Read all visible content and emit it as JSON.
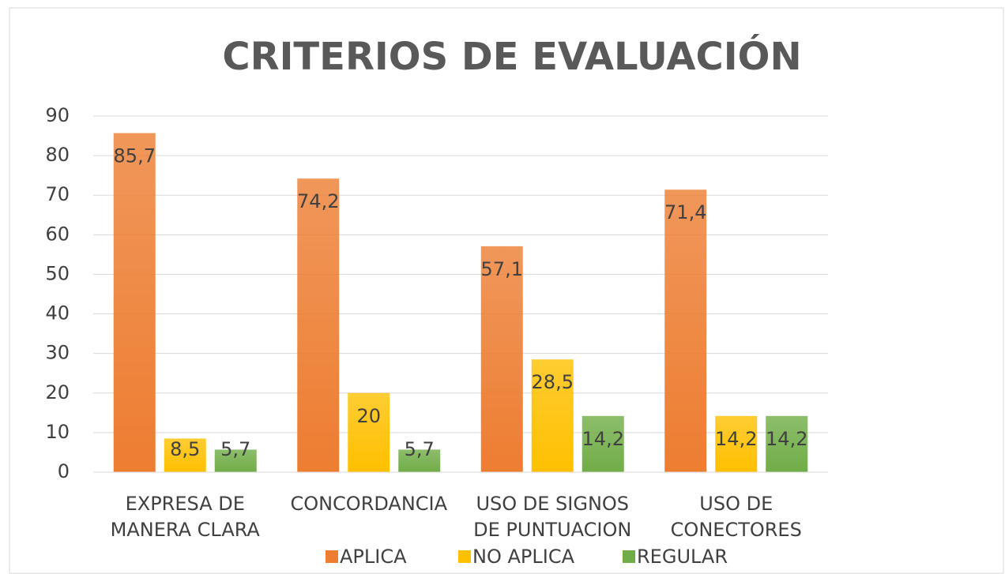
{
  "chart_data": {
    "type": "bar",
    "title": "CRITERIOS DE EVALUACIÓN",
    "categories": [
      "EXPRESA DE MANERA CLARA",
      "CONCORDANCIA",
      "USO DE SIGNOS DE PUNTUACION",
      "USO DE CONECTORES"
    ],
    "series": [
      {
        "name": "APLICA",
        "color": "#ED7D31",
        "values": [
          85.7,
          74.2,
          57.1,
          71.4
        ],
        "value_labels": [
          "85,7",
          "74,2",
          "57,1",
          "71,4"
        ]
      },
      {
        "name": "NO APLICA",
        "color": "#FFC000",
        "values": [
          8.5,
          20,
          28.5,
          14.2
        ],
        "value_labels": [
          "8,5",
          "20",
          "28,5",
          "14,2"
        ]
      },
      {
        "name": "REGULAR",
        "color": "#70AD47",
        "values": [
          5.7,
          5.7,
          14.2,
          14.2
        ],
        "value_labels": [
          "5,7",
          "5,7",
          "14,2",
          "14,2"
        ]
      }
    ],
    "ylim": [
      0,
      90
    ],
    "yticks": [
      0,
      10,
      20,
      30,
      40,
      50,
      60,
      70,
      80,
      90
    ],
    "grid": true,
    "legend": "bottom"
  }
}
